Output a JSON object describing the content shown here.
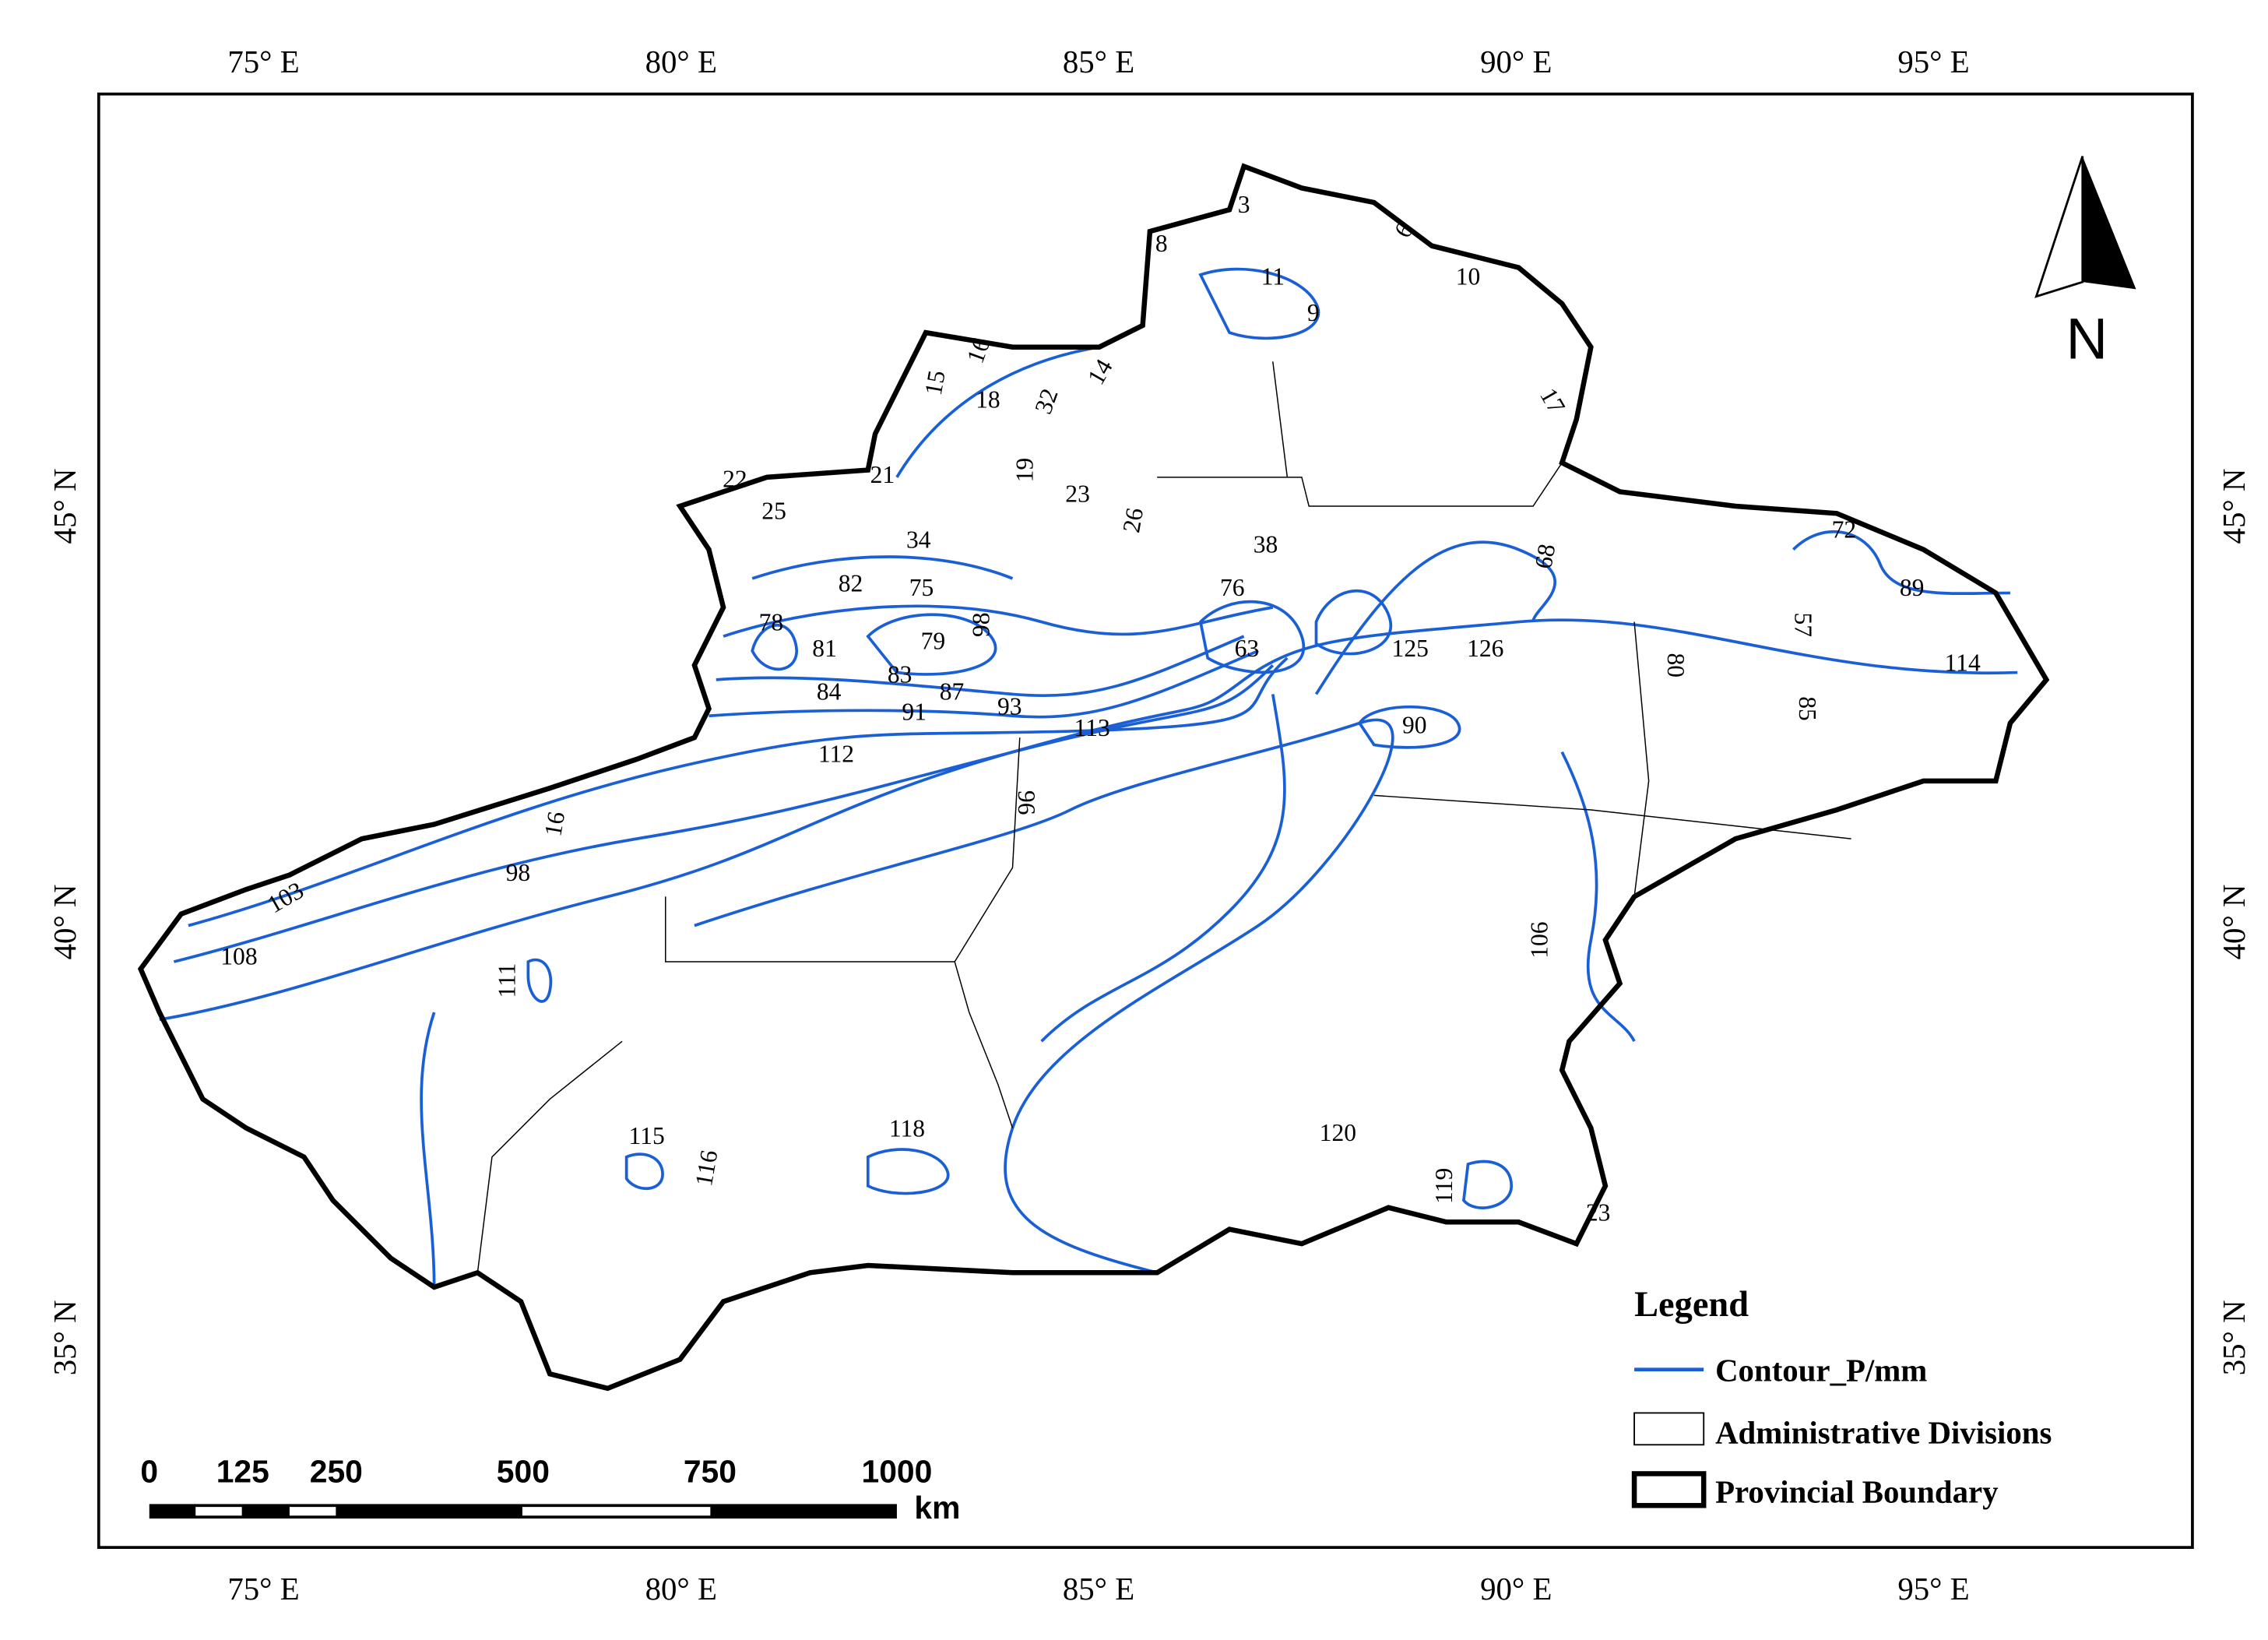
{
  "map": {
    "lon_ticks": [
      {
        "value": 75,
        "label": "75° E"
      },
      {
        "value": 80,
        "label": "80° E"
      },
      {
        "value": 85,
        "label": "85° E"
      },
      {
        "value": 90,
        "label": "90° E"
      },
      {
        "value": 95,
        "label": "95° E"
      }
    ],
    "lat_ticks": [
      {
        "value": 45,
        "label": "45° N"
      },
      {
        "value": 40,
        "label": "40° N"
      },
      {
        "value": 35,
        "label": "35° N"
      }
    ],
    "contour_labels": [
      3,
      6,
      8,
      11,
      10,
      9,
      15,
      16,
      18,
      14,
      32,
      17,
      19,
      22,
      25,
      21,
      23,
      26,
      34,
      38,
      68,
      72,
      82,
      75,
      76,
      89,
      78,
      81,
      79,
      98,
      63,
      57,
      125,
      126,
      114,
      80,
      83,
      87,
      84,
      91,
      93,
      85,
      113,
      90,
      112,
      96,
      16,
      98,
      103,
      108,
      111,
      106,
      115,
      118,
      120,
      116,
      119,
      23
    ],
    "north": "N",
    "legend": {
      "title": "Legend",
      "items": [
        "Contour_P/mm",
        "Administrative Divisions",
        "Provincial Boundary"
      ]
    },
    "scale_bar": {
      "ticks": [
        0,
        125,
        250,
        500,
        750,
        1000
      ],
      "unit": "km"
    }
  }
}
